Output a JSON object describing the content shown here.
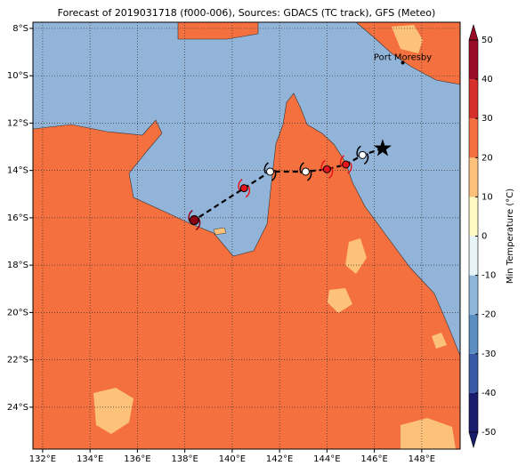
{
  "map": {
    "title": "Forecast of 2019031718 (f000-006), Sources: GDACS (TC track), GFS (Meteo)",
    "xlim": [
      131.59,
      149.62
    ],
    "ylim": [
      -25.77,
      -7.74
    ],
    "xticks": [
      {
        "value": 132,
        "label": "132°E"
      },
      {
        "value": 134,
        "label": "134°E"
      },
      {
        "value": 136,
        "label": "136°E"
      },
      {
        "value": 138,
        "label": "138°E"
      },
      {
        "value": 140,
        "label": "140°E"
      },
      {
        "value": 142,
        "label": "142°E"
      },
      {
        "value": 144,
        "label": "144°E"
      },
      {
        "value": 146,
        "label": "146°E"
      },
      {
        "value": 148,
        "label": "148°E"
      }
    ],
    "yticks": [
      {
        "value": -8,
        "label": "8°S"
      },
      {
        "value": -10,
        "label": "10°S"
      },
      {
        "value": -12,
        "label": "12°S"
      },
      {
        "value": -14,
        "label": "14°S"
      },
      {
        "value": -16,
        "label": "16°S"
      },
      {
        "value": -18,
        "label": "18°S"
      },
      {
        "value": -20,
        "label": "20°S"
      },
      {
        "value": -22,
        "label": "22°S"
      },
      {
        "value": -24,
        "label": "24°S"
      }
    ],
    "grid": true,
    "places": [
      {
        "name": "Port Moresby",
        "lon": 147.2,
        "lat": -9.45
      }
    ],
    "track": {
      "lon": [
        146.35,
        145.5,
        144.8,
        144.0,
        143.1,
        141.6,
        140.5,
        138.4
      ],
      "lat": [
        -13.07,
        -13.35,
        -13.75,
        -13.95,
        -14.05,
        -14.05,
        -14.75,
        -16.1
      ],
      "colors": [
        "#000000",
        "#ffffff",
        "#e8141c",
        "#e8141c",
        "#ffffff",
        "#ffffff",
        "#e8141c",
        "#8b0015"
      ]
    },
    "colorbar": {
      "label": "Min Temperature (°C)",
      "lim": [
        -50,
        50
      ],
      "ticks": [
        -50,
        -40,
        -30,
        -20,
        -10,
        0,
        10,
        20,
        30,
        40,
        50
      ],
      "colors": [
        "#1a1c6e",
        "#3a5aa8",
        "#5b8fc2",
        "#8fb6d9",
        "#e7f4f8",
        "#fff9c4",
        "#fdc27a",
        "#f4713f",
        "#d6302a",
        "#9a0c26"
      ]
    }
  }
}
